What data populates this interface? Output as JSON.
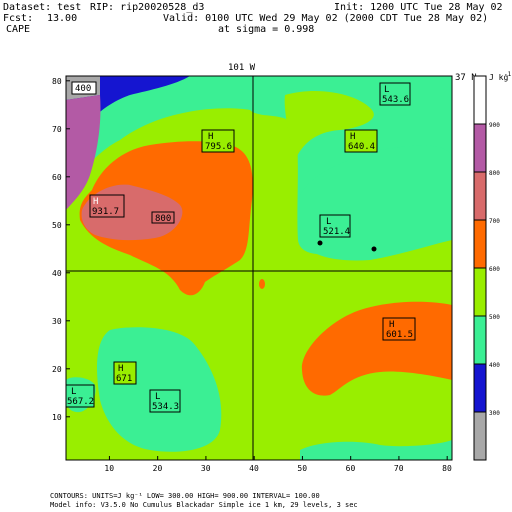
{
  "header": {
    "dataset": "Dataset: test",
    "rip": "RIP: rip20020528_d3",
    "init": "Init: 1200 UTC Tue 28 May 02",
    "fcst_label": "Fcst:",
    "fcst_value": "13.00",
    "valid": "Valid: 0100 UTC Wed 29 May 02 (2000 CDT Tue 28 May 02)",
    "field": "CAPE",
    "level": "at sigma = 0.998"
  },
  "map": {
    "top_label": "101 W",
    "right_label": "37 N",
    "x_ticks": [
      "10",
      "20",
      "30",
      "40",
      "50",
      "60",
      "70",
      "80"
    ],
    "y_ticks": [
      "10",
      "20",
      "30",
      "40",
      "50",
      "60",
      "70",
      "80"
    ],
    "x_range": [
      1,
      81
    ],
    "y_range": [
      1,
      81
    ],
    "annotations": [
      {
        "kind": "value",
        "text": "400"
      },
      {
        "kind": "H",
        "text": "795.6"
      },
      {
        "kind": "H",
        "text": "640.4"
      },
      {
        "kind": "L",
        "text": "543.6"
      },
      {
        "kind": "H",
        "text": "931.7"
      },
      {
        "kind": "value",
        "text": "800"
      },
      {
        "kind": "L",
        "text": "521.4"
      },
      {
        "kind": "H",
        "text": "601.5"
      },
      {
        "kind": "H",
        "text": "671"
      },
      {
        "kind": "L",
        "text": "567.2"
      },
      {
        "kind": "L",
        "text": "534.3"
      }
    ]
  },
  "colorbar": {
    "unit_label": "J kg",
    "unit_exp": "-1",
    "levels": [
      "900",
      "800",
      "700",
      "600",
      "500",
      "400",
      "300"
    ],
    "colors": [
      "#ffffff",
      "#b35aa5",
      "#d86b6b",
      "#ff6a00",
      "#99ee00",
      "#3bef94",
      "#1515d0",
      "#a8a8a8"
    ]
  },
  "footer": {
    "line1": "CONTOURS: UNITS=J kg⁻¹ LOW= 300.00 HIGH= 900.00 INTERVAL= 100.00",
    "line2": "Model info: V3.5.0 No Cumulus Blackadar Simple ice 1 km, 29 levels, 3 sec"
  }
}
